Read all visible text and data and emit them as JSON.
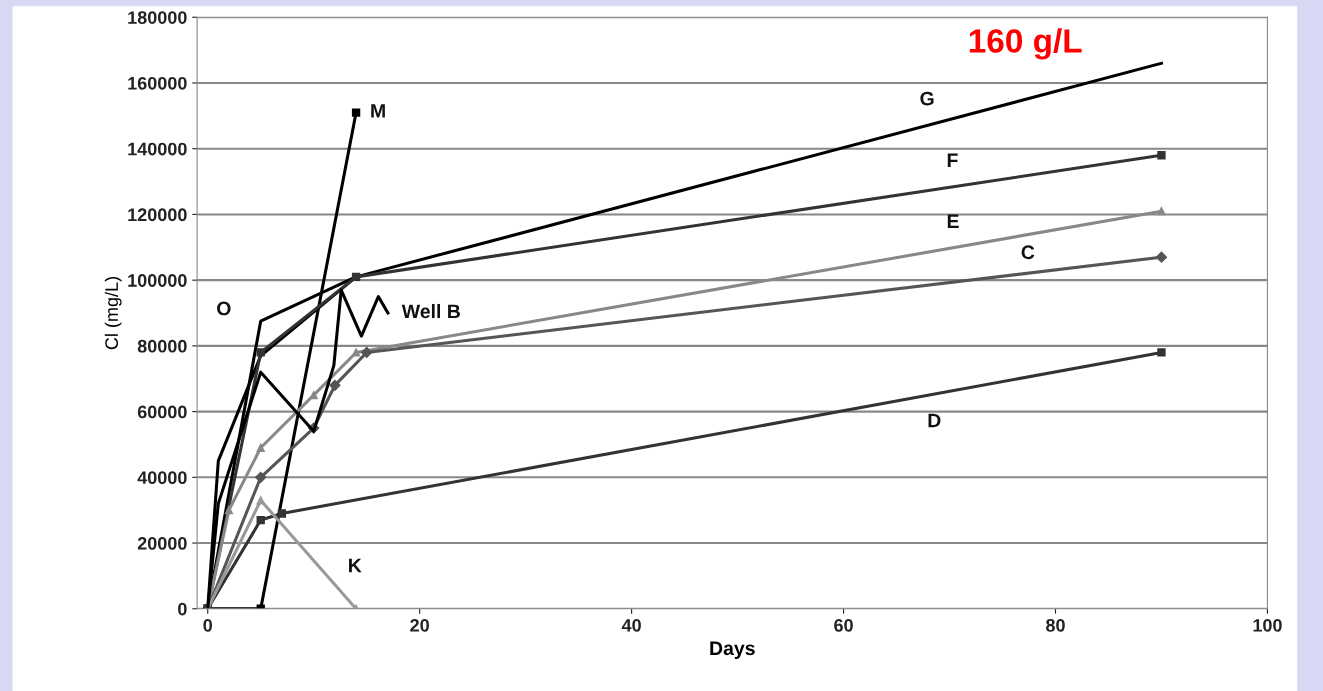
{
  "chart_data": {
    "type": "line",
    "xlabel": "Days",
    "ylabel": "Cl (mg/L)",
    "xlim": [
      -1,
      100
    ],
    "ylim": [
      0,
      180000
    ],
    "xticks": [
      0,
      20,
      40,
      60,
      80,
      100
    ],
    "yticks": [
      0,
      20000,
      40000,
      60000,
      80000,
      100000,
      120000,
      140000,
      160000,
      180000
    ],
    "grid": "y",
    "series": [
      {
        "name": "M",
        "color": "#000000",
        "marker": "square",
        "x": [
          0,
          5,
          14
        ],
        "values": [
          0,
          0,
          151000
        ]
      },
      {
        "name": "G",
        "color": "#000000",
        "marker": "none",
        "x": [
          0,
          1,
          5,
          14,
          90
        ],
        "values": [
          0,
          45000,
          77000,
          101000,
          166000
        ]
      },
      {
        "name": "O",
        "color": "#000000",
        "marker": "none",
        "x": [
          0,
          5,
          14
        ],
        "values": [
          0,
          87500,
          101000
        ]
      },
      {
        "name": "F",
        "color": "#333333",
        "marker": "square",
        "x": [
          0,
          5,
          14,
          90
        ],
        "values": [
          0,
          78000,
          101000,
          138000
        ]
      },
      {
        "name": "E",
        "color": "#888888",
        "marker": "triangle",
        "x": [
          0,
          2,
          5,
          10,
          14,
          90
        ],
        "values": [
          0,
          30000,
          49000,
          65000,
          78000,
          121000
        ]
      },
      {
        "name": "C",
        "color": "#555555",
        "marker": "diamond",
        "x": [
          0,
          5,
          10,
          12,
          15,
          90
        ],
        "values": [
          0,
          40000,
          55000,
          68000,
          78000,
          107000
        ]
      },
      {
        "name": "D",
        "color": "#333333",
        "marker": "square",
        "x": [
          0,
          5,
          7,
          90
        ],
        "values": [
          0,
          27000,
          29000,
          78000
        ]
      },
      {
        "name": "K",
        "color": "#999999",
        "marker": "triangle",
        "x": [
          0,
          5,
          14
        ],
        "values": [
          0,
          33000,
          0
        ]
      },
      {
        "name": "Well B",
        "color": "#000000",
        "marker": "none",
        "x": [
          0,
          1,
          5,
          10,
          11.9,
          12.6,
          14.5,
          16.1,
          17
        ],
        "values": [
          0,
          32000,
          72000,
          54000,
          74000,
          97000,
          83000,
          95000,
          90000
        ]
      }
    ],
    "annotations": [
      "160 g/L"
    ]
  }
}
